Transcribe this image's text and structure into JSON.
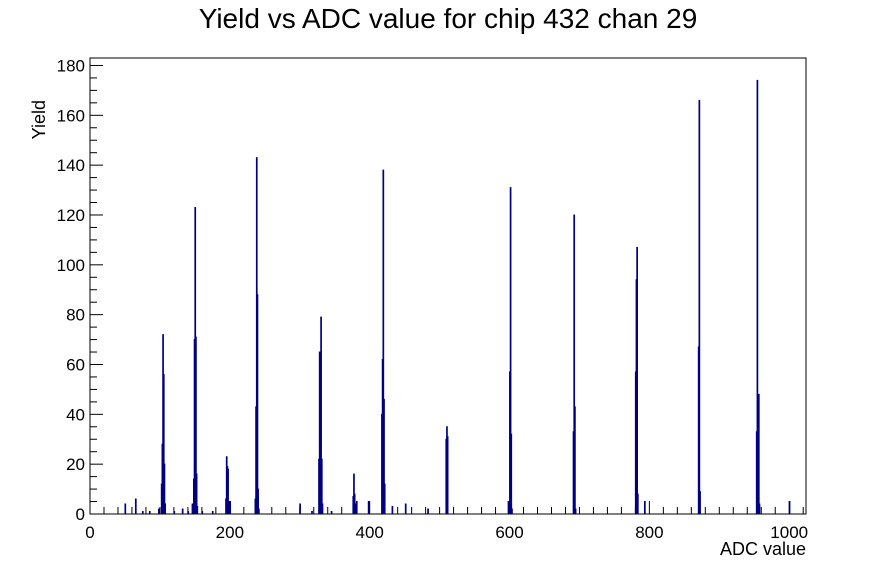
{
  "chart_data": {
    "type": "bar",
    "title": "Yield vs ADC value for chip 432 chan 29",
    "xlabel": "ADC value",
    "ylabel": "Yield",
    "xlim": [
      0,
      1024
    ],
    "ylim": [
      0,
      183
    ],
    "grid": false,
    "line_color": "#000080",
    "x_ticks": [
      0,
      200,
      400,
      600,
      800,
      1000
    ],
    "y_ticks": [
      0,
      20,
      40,
      60,
      80,
      100,
      120,
      140,
      160,
      180
    ],
    "bins": [
      {
        "x": 50,
        "y": 4
      },
      {
        "x": 65,
        "y": 6
      },
      {
        "x": 75,
        "y": 1
      },
      {
        "x": 85,
        "y": 1
      },
      {
        "x": 98,
        "y": 2
      },
      {
        "x": 102,
        "y": 12
      },
      {
        "x": 103,
        "y": 28
      },
      {
        "x": 104,
        "y": 72
      },
      {
        "x": 105,
        "y": 56
      },
      {
        "x": 106,
        "y": 20
      },
      {
        "x": 107,
        "y": 4
      },
      {
        "x": 120,
        "y": 1
      },
      {
        "x": 132,
        "y": 2
      },
      {
        "x": 140,
        "y": 1
      },
      {
        "x": 146,
        "y": 4
      },
      {
        "x": 148,
        "y": 14
      },
      {
        "x": 149,
        "y": 70
      },
      {
        "x": 150,
        "y": 123
      },
      {
        "x": 151,
        "y": 71
      },
      {
        "x": 152,
        "y": 16
      },
      {
        "x": 153,
        "y": 3
      },
      {
        "x": 160,
        "y": 1
      },
      {
        "x": 175,
        "y": 1
      },
      {
        "x": 194,
        "y": 6
      },
      {
        "x": 195,
        "y": 23
      },
      {
        "x": 196,
        "y": 19
      },
      {
        "x": 197,
        "y": 18
      },
      {
        "x": 198,
        "y": 5
      },
      {
        "x": 200,
        "y": 5
      },
      {
        "x": 236,
        "y": 6
      },
      {
        "x": 237,
        "y": 43
      },
      {
        "x": 238,
        "y": 143
      },
      {
        "x": 239,
        "y": 88
      },
      {
        "x": 240,
        "y": 10
      },
      {
        "x": 241,
        "y": 2
      },
      {
        "x": 300,
        "y": 4
      },
      {
        "x": 317,
        "y": 1
      },
      {
        "x": 327,
        "y": 22
      },
      {
        "x": 328,
        "y": 65
      },
      {
        "x": 329,
        "y": 59
      },
      {
        "x": 330,
        "y": 79
      },
      {
        "x": 331,
        "y": 22
      },
      {
        "x": 332,
        "y": 4
      },
      {
        "x": 345,
        "y": 1
      },
      {
        "x": 376,
        "y": 7
      },
      {
        "x": 377,
        "y": 16
      },
      {
        "x": 378,
        "y": 8
      },
      {
        "x": 379,
        "y": 4
      },
      {
        "x": 381,
        "y": 5
      },
      {
        "x": 398,
        "y": 5
      },
      {
        "x": 417,
        "y": 40
      },
      {
        "x": 418,
        "y": 62
      },
      {
        "x": 419,
        "y": 138
      },
      {
        "x": 420,
        "y": 46
      },
      {
        "x": 421,
        "y": 12
      },
      {
        "x": 432,
        "y": 3
      },
      {
        "x": 451,
        "y": 4
      },
      {
        "x": 483,
        "y": 2
      },
      {
        "x": 509,
        "y": 30
      },
      {
        "x": 510,
        "y": 35
      },
      {
        "x": 511,
        "y": 31
      },
      {
        "x": 598,
        "y": 5
      },
      {
        "x": 600,
        "y": 57
      },
      {
        "x": 601,
        "y": 131
      },
      {
        "x": 602,
        "y": 32
      },
      {
        "x": 603,
        "y": 2
      },
      {
        "x": 691,
        "y": 33
      },
      {
        "x": 692,
        "y": 120
      },
      {
        "x": 693,
        "y": 43
      },
      {
        "x": 694,
        "y": 2
      },
      {
        "x": 780,
        "y": 57
      },
      {
        "x": 781,
        "y": 94
      },
      {
        "x": 782,
        "y": 107
      },
      {
        "x": 783,
        "y": 8
      },
      {
        "x": 793,
        "y": 5
      },
      {
        "x": 870,
        "y": 67
      },
      {
        "x": 871,
        "y": 166
      },
      {
        "x": 872,
        "y": 9
      },
      {
        "x": 953,
        "y": 33
      },
      {
        "x": 954,
        "y": 174
      },
      {
        "x": 955,
        "y": 21
      },
      {
        "x": 956,
        "y": 48
      },
      {
        "x": 957,
        "y": 4
      },
      {
        "x": 1000,
        "y": 5
      }
    ]
  }
}
